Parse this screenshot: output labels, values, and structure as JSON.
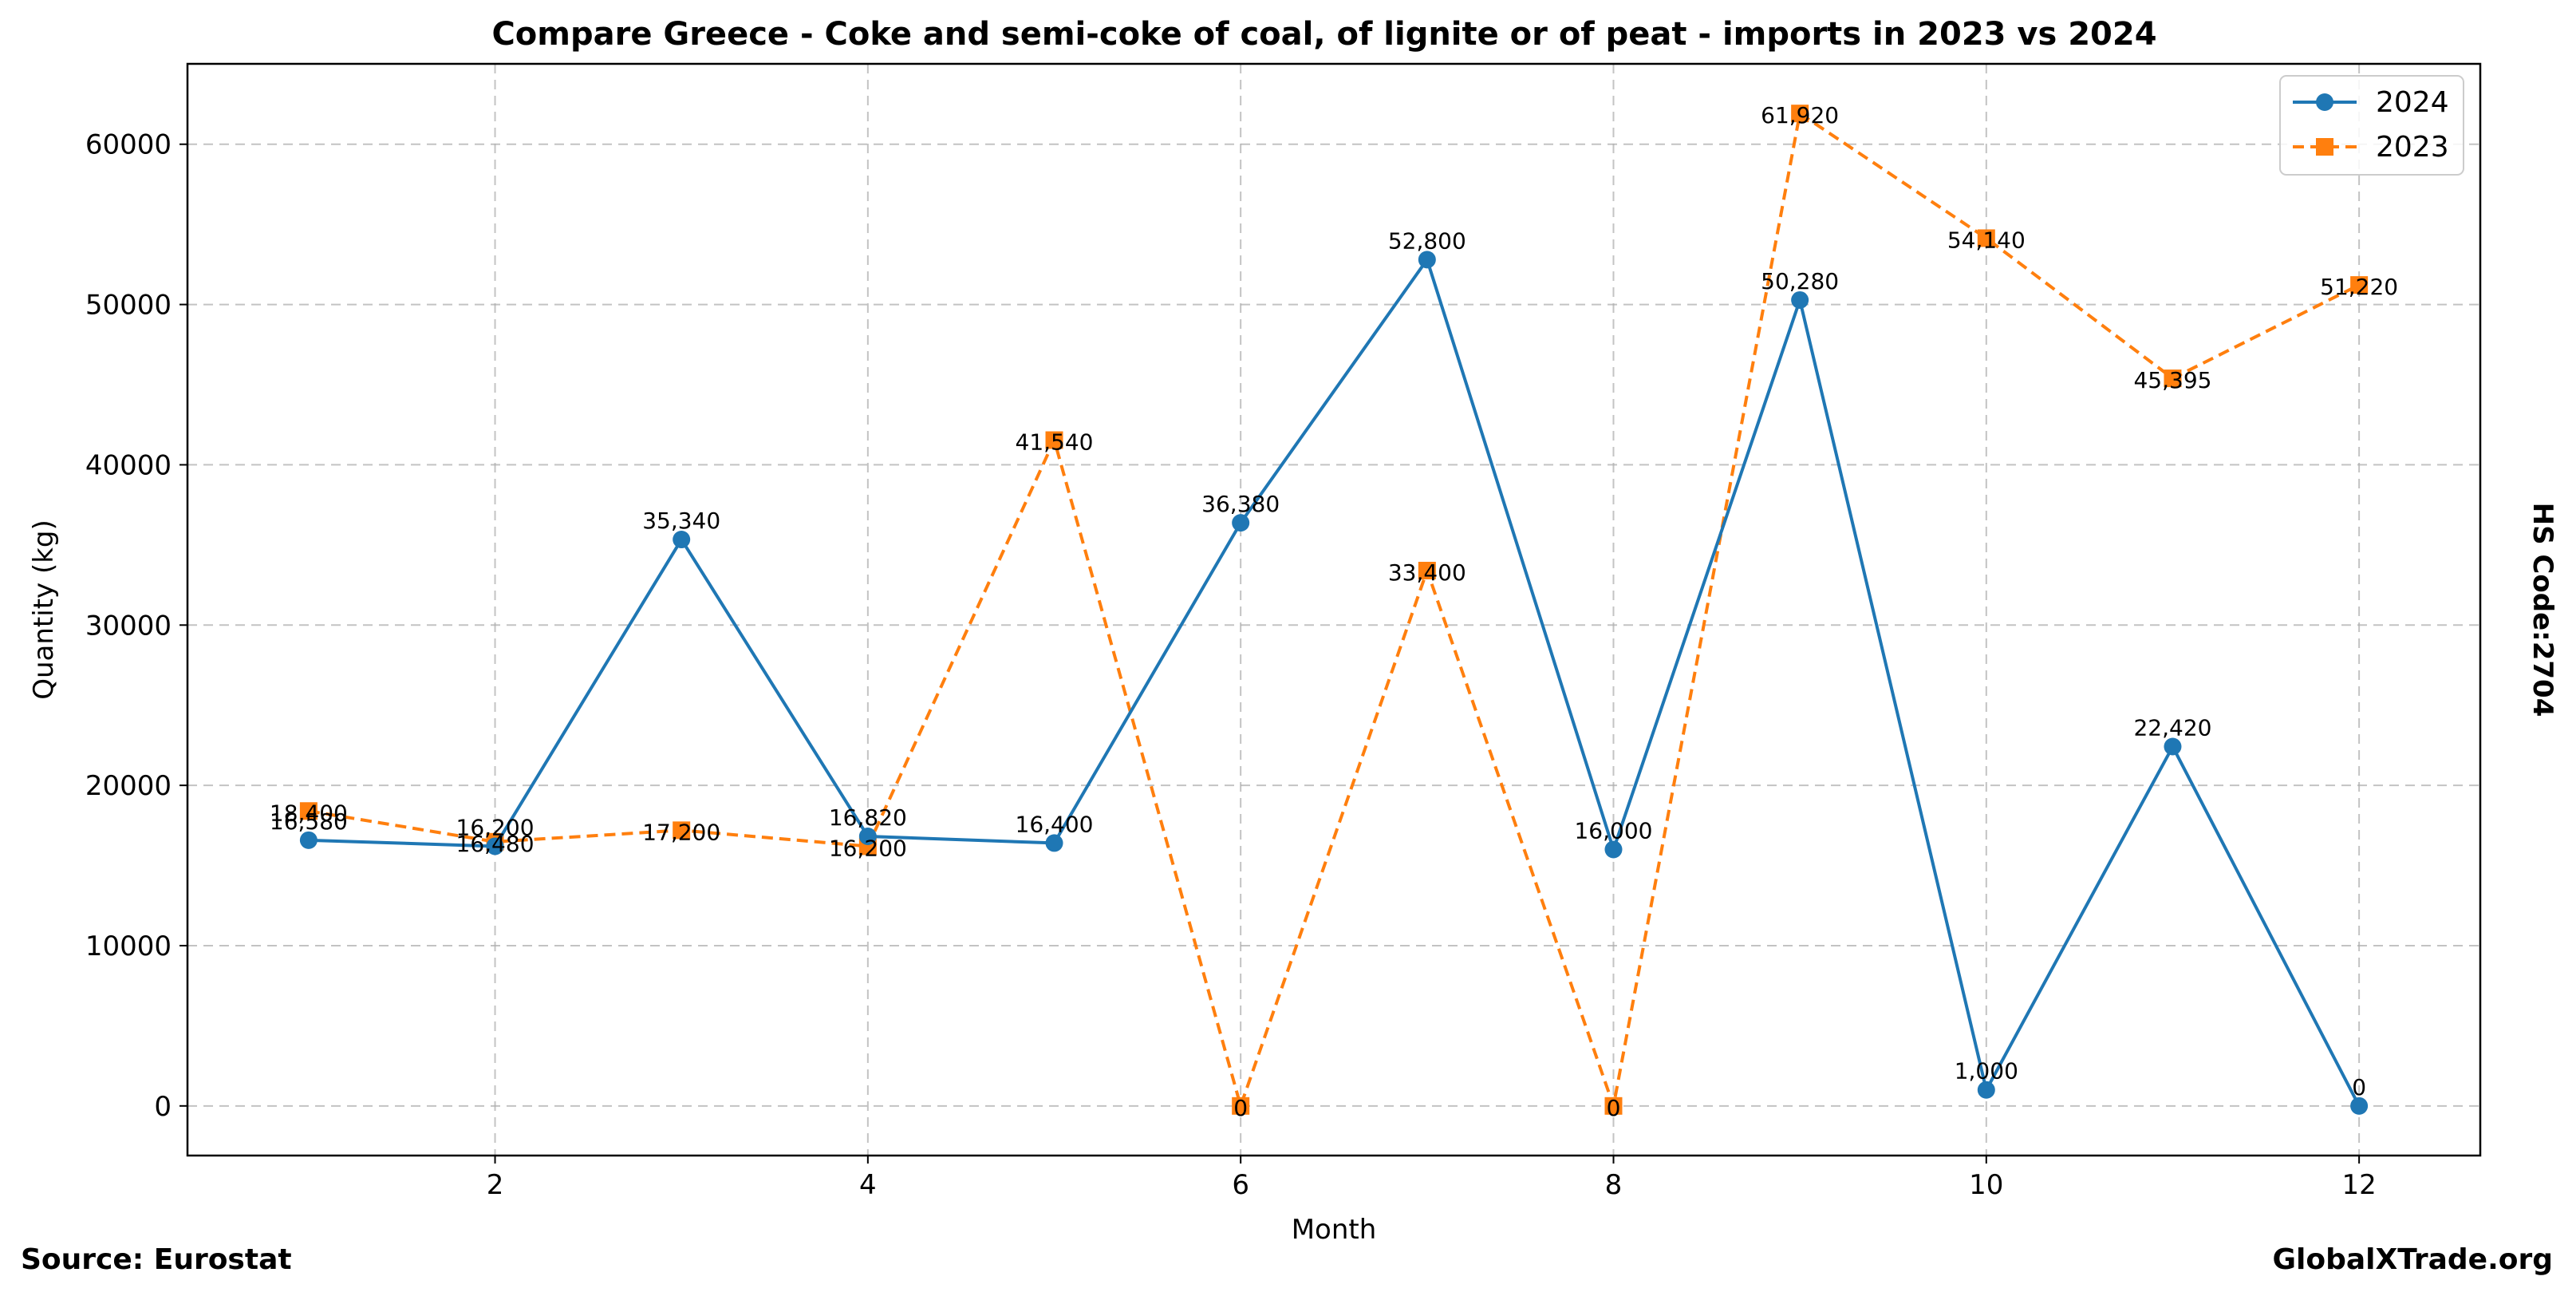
{
  "chart_data": {
    "type": "line",
    "title": "Compare Greece - Coke and semi-coke of coal, of lignite or of peat - imports in 2023 vs 2024",
    "xlabel": "Month",
    "ylabel": "Quantity (kg)",
    "xlim": [
      0.35,
      12.65
    ],
    "ylim": [
      -3096,
      65016
    ],
    "x_ticks": [
      2,
      4,
      6,
      8,
      10,
      12
    ],
    "y_ticks": [
      0,
      10000,
      20000,
      30000,
      40000,
      50000,
      60000
    ],
    "grid": true,
    "legend_position": "top-right",
    "series": [
      {
        "name": "2024",
        "color": "#1f77b4",
        "line_style": "solid",
        "marker": "circle",
        "x": [
          1,
          2,
          3,
          4,
          5,
          6,
          7,
          8,
          9,
          10,
          11,
          12
        ],
        "values": [
          16580,
          16200,
          35340,
          16820,
          16400,
          36380,
          52800,
          16000,
          50280,
          1000,
          22420,
          0
        ],
        "labels": [
          "16,580",
          "16,200",
          "35,340",
          "16,820",
          "16,400",
          "36,380",
          "52,800",
          "16,000",
          "50,280",
          "1,000",
          "22,420",
          "0"
        ]
      },
      {
        "name": "2023",
        "color": "#ff7f0e",
        "line_style": "dashed",
        "marker": "square",
        "x": [
          1,
          2,
          3,
          4,
          5,
          6,
          7,
          8,
          9,
          10,
          11,
          12
        ],
        "values": [
          18400,
          16480,
          17200,
          16200,
          41540,
          0,
          33400,
          0,
          61920,
          54140,
          45395,
          51220
        ],
        "labels": [
          "18,400",
          "16,480",
          "17,200",
          "16,200",
          "41,540",
          "0",
          "33,400",
          "0",
          "61,920",
          "54,140",
          "45,395",
          "51,220"
        ]
      }
    ]
  },
  "annotations": {
    "right_side": "HS Code:2704",
    "source": "Source: Eurostat",
    "brand": "GlobalXTrade.org"
  }
}
